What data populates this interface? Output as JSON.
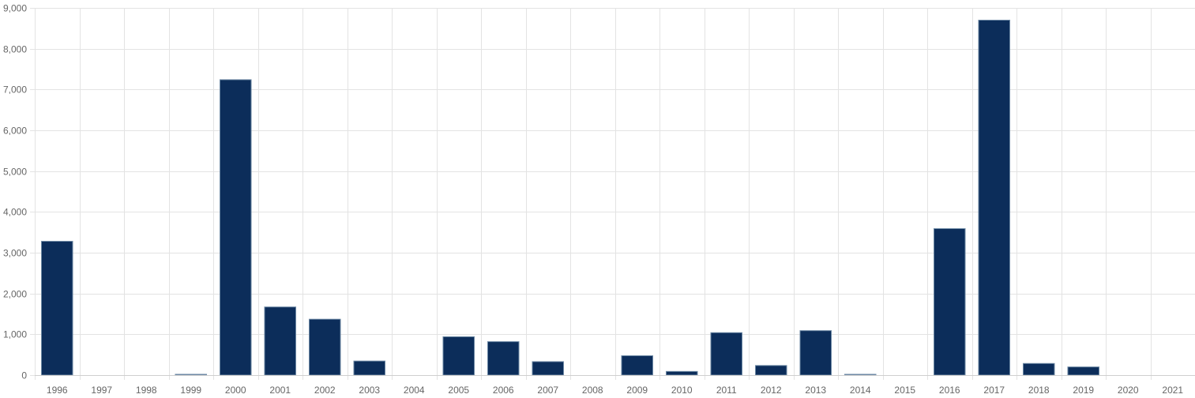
{
  "colors": {
    "bar_fill": "#0c2d5a",
    "bar_stroke": "#6f8aa6",
    "grid": "#e3e3e3",
    "tick_text": "#666666"
  },
  "chart_data": {
    "type": "bar",
    "title": "",
    "xlabel": "",
    "ylabel": "",
    "categories": [
      "1996",
      "1997",
      "1998",
      "1999",
      "2000",
      "2001",
      "2002",
      "2003",
      "2004",
      "2005",
      "2006",
      "2007",
      "2008",
      "2009",
      "2010",
      "2011",
      "2012",
      "2013",
      "2014",
      "2015",
      "2016",
      "2017",
      "2018",
      "2019",
      "2020",
      "2021"
    ],
    "values": [
      3280,
      0,
      0,
      15,
      7240,
      1670,
      1370,
      345,
      0,
      940,
      820,
      330,
      0,
      475,
      90,
      1040,
      235,
      1090,
      10,
      0,
      3590,
      8700,
      285,
      200,
      0,
      0
    ],
    "ylim": [
      0,
      9000
    ],
    "y_ticks": [
      0,
      1000,
      2000,
      3000,
      4000,
      5000,
      6000,
      7000,
      8000,
      9000
    ],
    "y_tick_labels": [
      "0",
      "1,000",
      "2,000",
      "3,000",
      "4,000",
      "5,000",
      "6,000",
      "7,000",
      "8,000",
      "9,000"
    ],
    "grid": true,
    "legend": "none"
  }
}
